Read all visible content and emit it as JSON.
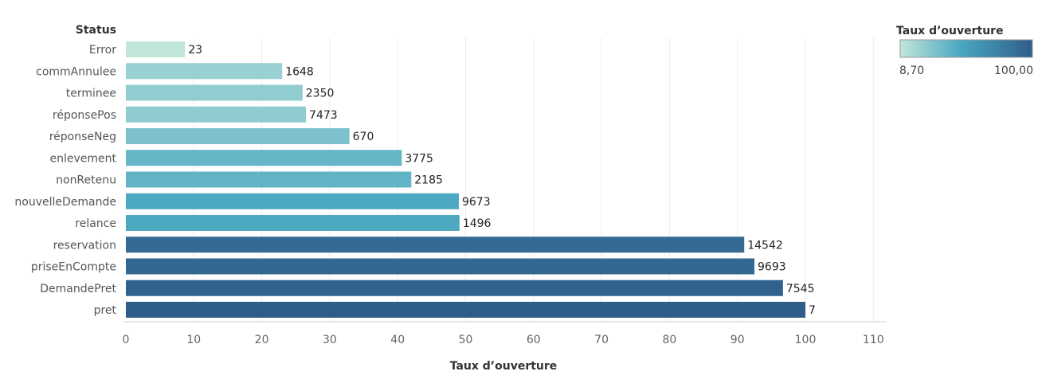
{
  "chart_data": {
    "type": "bar",
    "orientation": "horizontal",
    "row_header": "Status",
    "xlabel": "Taux d’ouverture",
    "xlim": [
      0,
      110
    ],
    "x_ticks": [
      "0",
      "10",
      "20",
      "30",
      "40",
      "50",
      "60",
      "70",
      "80",
      "90",
      "100",
      "110"
    ],
    "grid": true,
    "categories": [
      "Error",
      "commAnnulee",
      "terminee",
      "réponsePos",
      "réponseNeg",
      "enlevement",
      "nonRetenu",
      "nouvelleDemande",
      "relance",
      "reservation",
      "priseEnCompte",
      "DemandePret",
      "pret"
    ],
    "values": [
      8.7,
      23.0,
      26.0,
      26.5,
      32.9,
      40.6,
      42.0,
      49.0,
      49.1,
      91.0,
      92.5,
      96.7,
      100.0
    ],
    "labels": [
      "23",
      "1648",
      "2350",
      "7473",
      "670",
      "3775",
      "2185",
      "9673",
      "1496",
      "14542",
      "9693",
      "7545",
      "7"
    ],
    "legend": {
      "title": "Taux d’ouverture",
      "min_label": "8,70",
      "max_label": "100,00",
      "placement": "top-right"
    },
    "colors": {
      "scale": [
        "#c3e6db",
        "#4aa8c0",
        "#2f5d8a"
      ],
      "grid": "#ececec",
      "axis": "#cccccc"
    }
  }
}
